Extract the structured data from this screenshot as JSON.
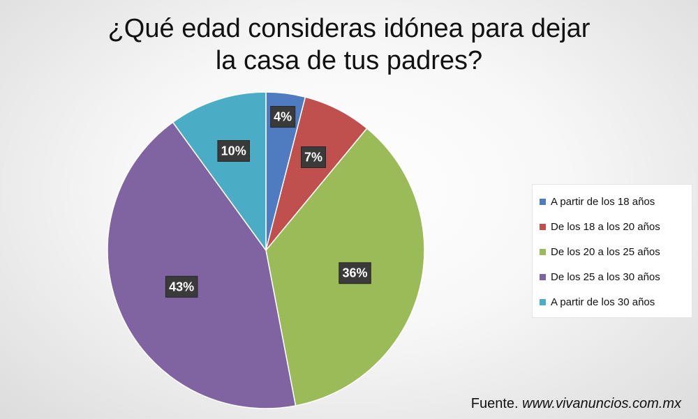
{
  "chart_data": {
    "type": "pie",
    "title_lines": [
      "¿Qué edad consideras idónea para dejar",
      "la casa de tus padres?"
    ],
    "categories": [
      "A partir de los 18 años",
      "De los 18 a los 20 años",
      "De los 20 a los 25 años",
      "De los 25 a los 30 años",
      "A partir de los 30 años"
    ],
    "values": [
      4,
      7,
      36,
      43,
      10
    ],
    "data_labels": [
      "4%",
      "7%",
      "36%",
      "43%",
      "10%"
    ],
    "colors": [
      "#4f7cc0",
      "#c0504d",
      "#9bbb59",
      "#8064a2",
      "#4bacc6"
    ],
    "legend_position": "right"
  },
  "source": {
    "prefix": "Fuente.",
    "url": "www.vivanuncios.com.mx"
  }
}
